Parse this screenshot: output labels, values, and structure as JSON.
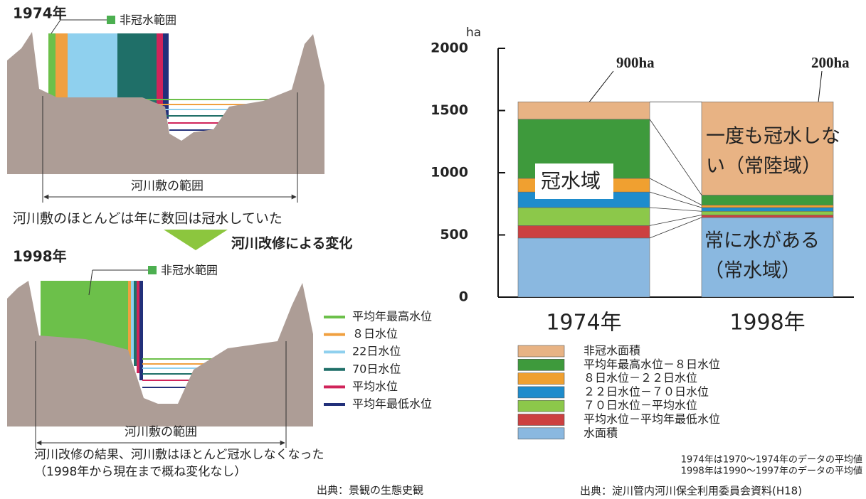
{
  "left": {
    "panels": [
      {
        "year": "1974年",
        "legend_label": "非冠水範囲",
        "range_label": "河川敷の範囲"
      },
      {
        "year": "1998年",
        "legend_label": "非冠水範囲",
        "range_label": "河川敷の範囲"
      }
    ],
    "caption_1974": "河川敷のほとんどは年に数回は冠水していた",
    "change_label": "河川改修による変化",
    "legend": [
      {
        "label": "平均年最高水位",
        "color": "#6cc04a"
      },
      {
        "label": "８日水位",
        "color": "#f0a040"
      },
      {
        "label": "22日水位",
        "color": "#8fd0ee"
      },
      {
        "label": "70日水位",
        "color": "#1f6f68"
      },
      {
        "label": "平均水位",
        "color": "#d0245a"
      },
      {
        "label": "平均年最低水位",
        "color": "#22307a"
      }
    ],
    "caption_lines": [
      "河川改修の結果、河川敷はほとんど冠水しなくなった",
      "（1998年から現在まで概ね変化なし）"
    ],
    "source": "出典：景観の生態史観"
  },
  "chart_data": {
    "type": "stacked_bar",
    "y_label": "ha",
    "categories": [
      "1974年",
      "1998年"
    ],
    "series": [
      {
        "name": "非冠水面積",
        "color": "#e8b384",
        "values": [
          140,
          750
        ]
      },
      {
        "name": "平均年最高水位－８日水位",
        "color": "#3e9a3c",
        "values": [
          475,
          80
        ]
      },
      {
        "name": "８日水位－２２日水位",
        "color": "#f0a030",
        "values": [
          110,
          20
        ]
      },
      {
        "name": "２２日水位－７０日水位",
        "color": "#1e8ccc",
        "values": [
          125,
          30
        ]
      },
      {
        "name": "７０日水位－平均水位",
        "color": "#8cc84a",
        "values": [
          145,
          30
        ]
      },
      {
        "name": "平均水位－平均年最低水位",
        "color": "#cc4040",
        "values": [
          100,
          20
        ]
      },
      {
        "name": "水面積",
        "color": "#8ab8e0",
        "values": [
          475,
          640
        ]
      }
    ],
    "ylim": [
      0,
      2000
    ],
    "yticks": [
      0,
      500,
      1000,
      1500,
      2000
    ],
    "annotations": {
      "total_1974": "900ha",
      "total_1998": "200ha",
      "flooded": "冠水域",
      "never": [
        "一度も冠水しな",
        "い（常陸域）"
      ],
      "always": [
        "常に水がある",
        "（常水域）"
      ]
    },
    "notes": [
      "1974年は1970～1974年のデータの平均値",
      "1998年は1990～1997年のデータの平均値"
    ],
    "source": "出典：淀川管内河川保全利用委員会資料(H18)"
  }
}
